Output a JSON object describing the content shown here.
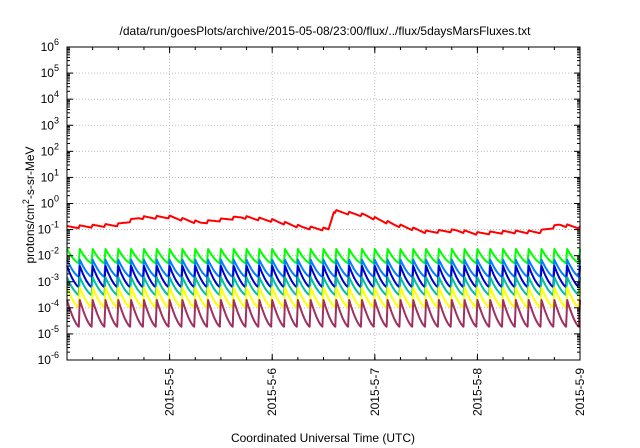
{
  "chart_data": {
    "type": "line",
    "title": "/data/run/goesPlots/archive/2015-05-08/23:00/flux/../flux/5daysMarsFluxes.txt",
    "xlabel": "Coordinated Universal Time (UTC)",
    "ylabel_parts": [
      "protons/cm",
      "2",
      "-s-sr-MeV"
    ],
    "y_scale": "log",
    "ylim_exponents": [
      -6,
      6
    ],
    "y_tick_exponents": [
      -6,
      -5,
      -4,
      -3,
      -2,
      -1,
      0,
      1,
      2,
      3,
      4,
      5,
      6
    ],
    "y_tick_base": "10",
    "x_range_days": [
      4.0,
      9.0
    ],
    "x_ticks": [
      {
        "day": 5,
        "label": "2015-5-5"
      },
      {
        "day": 6,
        "label": "2015-5-6"
      },
      {
        "day": 7,
        "label": "2015-5-7"
      },
      {
        "day": 8,
        "label": "2015-5-8"
      },
      {
        "day": 9,
        "label": "2015-5-9"
      }
    ],
    "grid": true,
    "legend": "none",
    "series": [
      {
        "color": "#ff0000",
        "kind": "smooth",
        "sawtooth_period_days": 0.125,
        "sawtooth_jump_log10": 0.12,
        "knots_day": [
          4.0,
          4.5,
          4.7,
          5.0,
          5.3,
          5.7,
          6.0,
          6.3,
          6.55,
          6.6,
          6.9,
          7.2,
          7.5,
          7.8,
          8.0,
          8.3,
          8.6,
          8.8,
          9.0
        ],
        "knots_value": [
          0.12,
          0.15,
          0.28,
          0.3,
          0.18,
          0.3,
          0.22,
          0.12,
          0.1,
          0.5,
          0.35,
          0.15,
          0.08,
          0.09,
          0.07,
          0.08,
          0.08,
          0.15,
          0.12
        ]
      },
      {
        "color": "#00ff00",
        "kind": "periodic",
        "period_days": 0.125,
        "peak": 0.018,
        "trough": 0.005
      },
      {
        "color": "#0080ff",
        "kind": "periodic",
        "period_days": 0.125,
        "peak": 0.007,
        "trough": 0.0015
      },
      {
        "color": "#0000cc",
        "kind": "periodic",
        "period_days": 0.125,
        "peak": 0.004,
        "trough": 0.0006
      },
      {
        "color": "#00c0a0",
        "kind": "periodic",
        "period_days": 0.125,
        "peak": 0.0015,
        "trough": 0.0003
      },
      {
        "color": "#ffff00",
        "kind": "periodic",
        "period_days": 0.125,
        "peak": 0.0006,
        "trough": 0.0001
      },
      {
        "color": "#a03060",
        "kind": "periodic",
        "period_days": 0.125,
        "peak": 0.0002,
        "trough": 1.8e-05
      }
    ]
  }
}
